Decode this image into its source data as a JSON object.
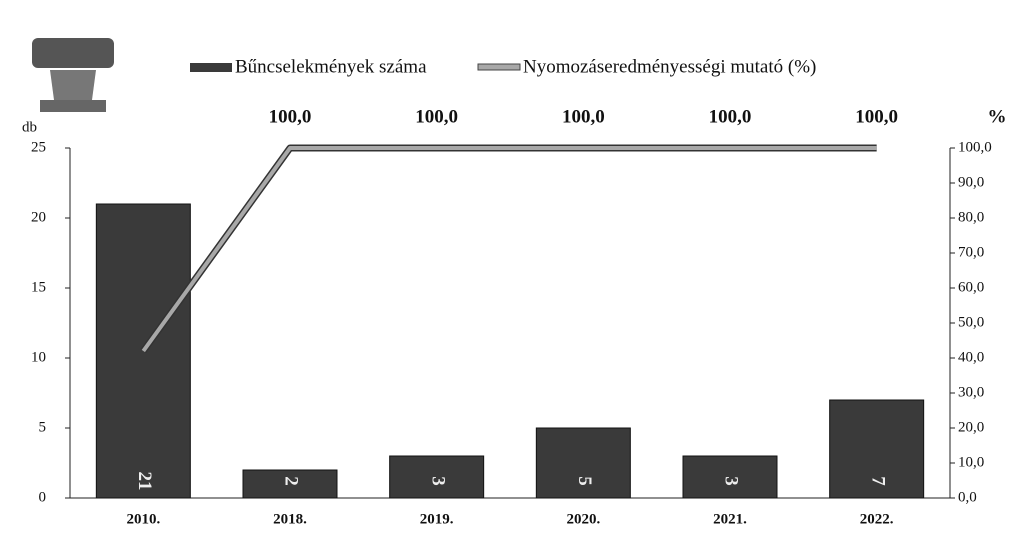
{
  "chart_data": {
    "type": "bar-line",
    "categories": [
      "2010.",
      "2018.",
      "2019.",
      "2020.",
      "2021.",
      "2022."
    ],
    "series": [
      {
        "name": "Bűncselekmények száma",
        "type": "bar",
        "color": "#3a3a3a",
        "values": [
          21,
          2,
          3,
          5,
          3,
          7
        ]
      },
      {
        "name": "Nyomozáseredményességi mutató (%)",
        "type": "line",
        "color": "#a8a8a8",
        "axis": "y2",
        "values": [
          42,
          100,
          100,
          100,
          100,
          100
        ],
        "value_labels": [
          null,
          "100,0",
          "100,0",
          "100,0",
          "100,0",
          "100,0"
        ]
      }
    ],
    "y_label": "db",
    "y2_label": "%",
    "ylim": [
      0,
      25
    ],
    "yticks": [
      0,
      5,
      10,
      15,
      20,
      25
    ],
    "y2lim": [
      0,
      100
    ],
    "y2ticks": [
      {
        "value": 0,
        "label": "0,0"
      },
      {
        "value": 10,
        "label": "10,0"
      },
      {
        "value": 20,
        "label": "20,0"
      },
      {
        "value": 30,
        "label": "30,0"
      },
      {
        "value": 40,
        "label": "40,0"
      },
      {
        "value": 50,
        "label": "50,0"
      },
      {
        "value": 60,
        "label": "60,0"
      },
      {
        "value": 70,
        "label": "70,0"
      },
      {
        "value": 80,
        "label": "80,0"
      },
      {
        "value": 90,
        "label": "90,0"
      },
      {
        "value": 100,
        "label": "100,0"
      }
    ]
  }
}
